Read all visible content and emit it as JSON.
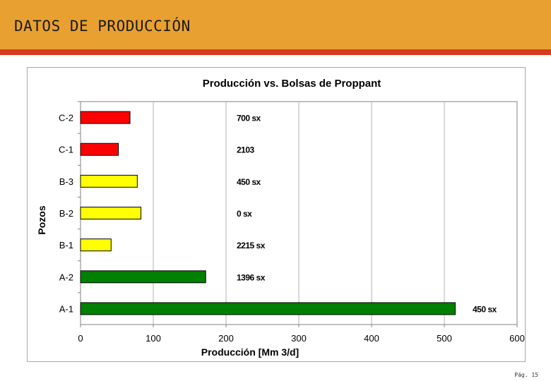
{
  "slide": {
    "title": "DATOS DE PRODUCCIÓN",
    "page_number": "Pág. 15",
    "header_color": "#E8A030",
    "rule_color": "#D63A1F"
  },
  "chart_data": {
    "type": "bar",
    "orientation": "horizontal",
    "title": "Producción vs. Bolsas de Proppant",
    "xlabel": "Producción [Mm 3/d]",
    "ylabel": "Pozos",
    "xlim": [
      0,
      600
    ],
    "xticks": [
      0,
      100,
      200,
      300,
      400,
      500,
      600
    ],
    "grid": "vertical",
    "categories": [
      "C-2",
      "C-1",
      "B-3",
      "B-2",
      "B-1",
      "A-2",
      "A-1"
    ],
    "values": [
      68,
      52,
      78,
      83,
      42,
      172,
      515
    ],
    "colors": [
      "#FF0000",
      "#FF0000",
      "#FFFF00",
      "#FFFF00",
      "#FFFF00",
      "#008000",
      "#008000"
    ],
    "annotations": [
      "700 sx",
      "2103",
      "450 sx",
      "0 sx",
      "2215 sx",
      "1396 sx",
      "450 sx"
    ]
  }
}
